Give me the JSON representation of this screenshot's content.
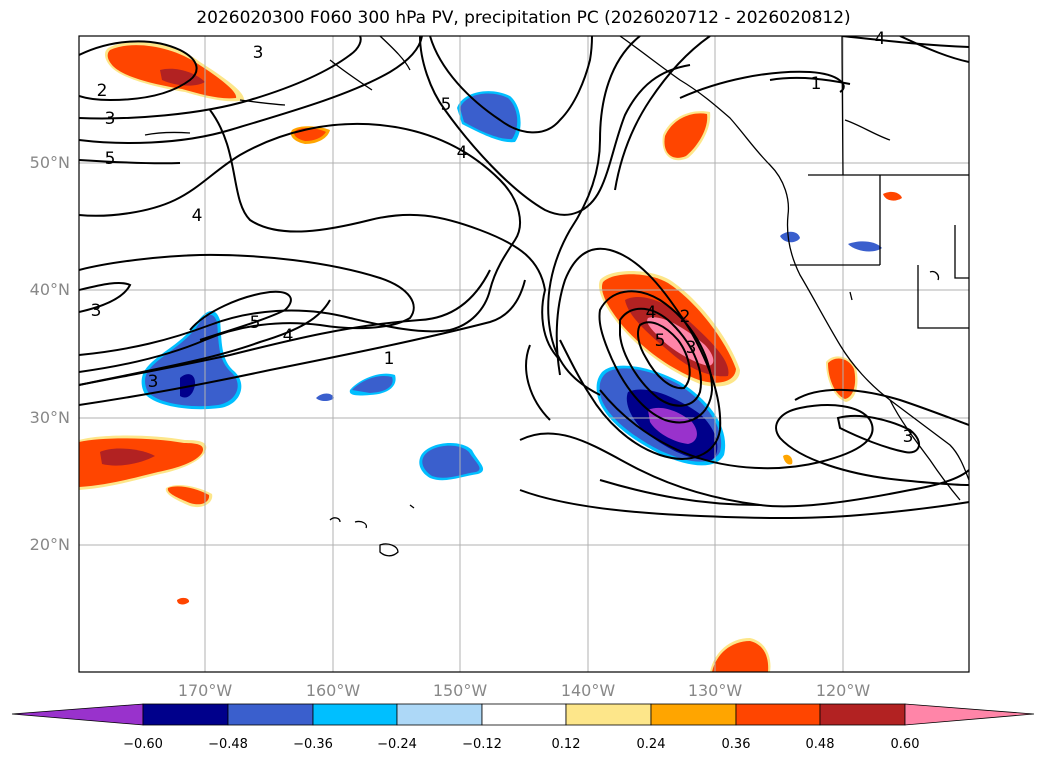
{
  "title": "2026020300 F060 300 hPa PV, precipitation PC (2026020712 - 2026020812)",
  "lat_labels": [
    "50°N",
    "40°N",
    "30°N",
    "20°N"
  ],
  "lon_labels": [
    "170°W",
    "160°W",
    "150°W",
    "140°W",
    "130°W",
    "120°W"
  ],
  "contour_labels": {
    "c1": "3",
    "c2": "2",
    "c3": "3",
    "c4": "5",
    "c5": "5",
    "c6": "4",
    "c7": "4",
    "c8": "3",
    "c9": "5",
    "c10": "4",
    "c11": "1",
    "c12": "3",
    "c13": "4",
    "c14": "5",
    "c15": "3",
    "c16": "2",
    "c17": "1",
    "c18": "4",
    "c19": "3"
  },
  "colorbar": {
    "ticks": [
      "−0.60",
      "−0.48",
      "−0.36",
      "−0.24",
      "−0.12",
      "0.12",
      "0.24",
      "0.36",
      "0.48",
      "0.60"
    ],
    "colors": [
      "#9932cc",
      "#00008b",
      "#3a5fcd",
      "#00bfff",
      "#add8f7",
      "#ffffff",
      "#fde68a",
      "#ffa500",
      "#ff4500",
      "#b22222",
      "#ff85a8"
    ]
  }
}
